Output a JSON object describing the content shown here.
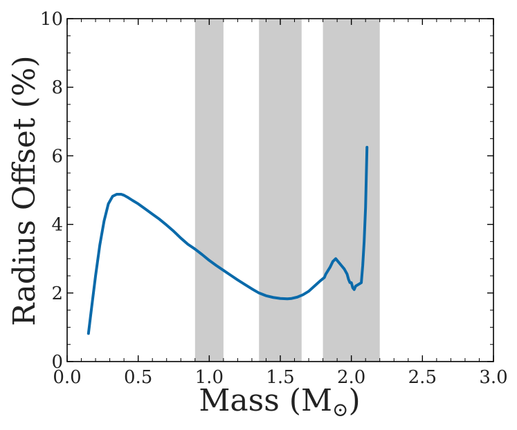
{
  "chart_data": {
    "type": "line",
    "title": "",
    "xlabel": "Mass (M",
    "xlabel_subscript": "⊙",
    "xlabel_close": ")",
    "ylabel": "Radius Offset (%)",
    "xlim": [
      0.0,
      3.0
    ],
    "ylim": [
      0,
      10
    ],
    "xticks": [
      0.0,
      0.5,
      1.0,
      1.5,
      2.0,
      2.5,
      3.0
    ],
    "xtick_labels": [
      "0.0",
      "0.5",
      "1.0",
      "1.5",
      "2.0",
      "2.5",
      "3.0"
    ],
    "yticks": [
      0,
      2,
      4,
      6,
      8,
      10
    ],
    "ytick_labels": [
      "0",
      "2",
      "4",
      "6",
      "8",
      "10"
    ],
    "grid": false,
    "shaded_regions": [
      {
        "x_start": 0.9,
        "x_end": 1.1,
        "color": "#cccccc"
      },
      {
        "x_start": 1.35,
        "x_end": 1.65,
        "color": "#cccccc"
      },
      {
        "x_start": 1.8,
        "x_end": 2.2,
        "color": "#cccccc"
      }
    ],
    "series": [
      {
        "name": "radius-offset",
        "color": "#0a6aaa",
        "x": [
          0.15,
          0.17,
          0.2,
          0.23,
          0.26,
          0.29,
          0.32,
          0.35,
          0.38,
          0.4,
          0.43,
          0.46,
          0.5,
          0.55,
          0.6,
          0.65,
          0.7,
          0.75,
          0.8,
          0.85,
          0.9,
          0.95,
          1.0,
          1.05,
          1.1,
          1.15,
          1.2,
          1.25,
          1.3,
          1.35,
          1.4,
          1.45,
          1.5,
          1.55,
          1.58,
          1.62,
          1.66,
          1.7,
          1.74,
          1.78,
          1.81,
          1.82,
          1.85,
          1.87,
          1.89,
          1.9,
          1.91,
          1.93,
          1.95,
          1.97,
          1.98,
          1.99,
          2.0,
          2.01,
          2.02,
          2.03,
          2.05,
          2.07,
          2.08,
          2.09,
          2.1,
          2.11
        ],
        "y": [
          0.82,
          1.5,
          2.5,
          3.4,
          4.1,
          4.6,
          4.82,
          4.88,
          4.88,
          4.85,
          4.78,
          4.7,
          4.6,
          4.45,
          4.3,
          4.15,
          3.98,
          3.8,
          3.6,
          3.42,
          3.28,
          3.12,
          2.95,
          2.8,
          2.66,
          2.52,
          2.38,
          2.25,
          2.12,
          2.0,
          1.92,
          1.87,
          1.84,
          1.83,
          1.84,
          1.88,
          1.95,
          2.05,
          2.2,
          2.35,
          2.45,
          2.55,
          2.75,
          2.92,
          3.0,
          2.95,
          2.9,
          2.8,
          2.7,
          2.55,
          2.4,
          2.3,
          2.3,
          2.15,
          2.1,
          2.2,
          2.25,
          2.3,
          2.8,
          3.5,
          4.5,
          6.25
        ]
      }
    ]
  }
}
